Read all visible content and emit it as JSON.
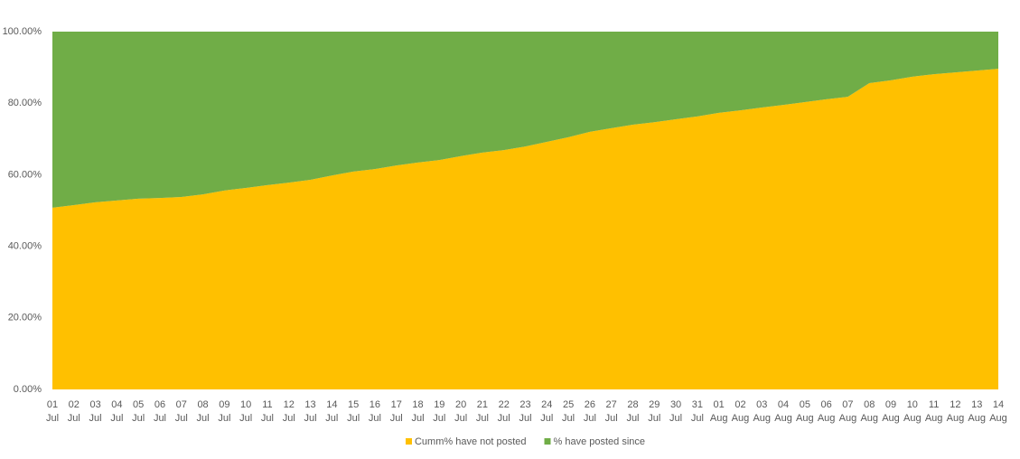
{
  "chart_data": {
    "type": "stacked_area",
    "categories": [
      "01 Jul",
      "02 Jul",
      "03 Jul",
      "04 Jul",
      "05 Jul",
      "06 Jul",
      "07 Jul",
      "08 Jul",
      "09 Jul",
      "10 Jul",
      "11 Jul",
      "12 Jul",
      "13 Jul",
      "14 Jul",
      "15 Jul",
      "16 Jul",
      "17 Jul",
      "18 Jul",
      "19 Jul",
      "20 Jul",
      "21 Jul",
      "22 Jul",
      "23 Jul",
      "24 Jul",
      "25 Jul",
      "26 Jul",
      "27 Jul",
      "28 Jul",
      "29 Jul",
      "30 Jul",
      "31 Jul",
      "01 Aug",
      "02 Aug",
      "03 Aug",
      "04 Aug",
      "05 Aug",
      "06 Aug",
      "07 Aug",
      "08 Aug",
      "09 Aug",
      "10 Aug",
      "11 Aug",
      "12 Aug",
      "13 Aug",
      "14 Aug"
    ],
    "series": [
      {
        "name": "Cumm% have not posted",
        "color": "#ffc000",
        "values": [
          50.8,
          51.5,
          52.3,
          52.8,
          53.3,
          53.5,
          53.8,
          54.5,
          55.6,
          56.3,
          57.1,
          57.8,
          58.6,
          59.8,
          60.9,
          61.6,
          62.6,
          63.4,
          64.1,
          65.2,
          66.2,
          66.9,
          67.9,
          69.2,
          70.5,
          72.0,
          73.0,
          74.0,
          74.7,
          75.5,
          76.3,
          77.3,
          78.0,
          78.8,
          79.5,
          80.3,
          81.1,
          81.8,
          85.6,
          86.4,
          87.4,
          88.1,
          88.6,
          89.1,
          89.6
        ]
      },
      {
        "name": "% have posted since",
        "color": "#70ad47",
        "values": [
          49.2,
          48.5,
          47.7,
          47.2,
          46.7,
          46.5,
          46.2,
          45.5,
          44.4,
          43.7,
          42.9,
          42.2,
          41.4,
          40.2,
          39.1,
          38.4,
          37.4,
          36.6,
          35.9,
          34.8,
          33.8,
          33.1,
          32.1,
          30.8,
          29.5,
          28.0,
          27.0,
          26.0,
          25.3,
          24.5,
          23.7,
          22.7,
          22.0,
          21.2,
          20.5,
          19.7,
          18.9,
          18.2,
          14.4,
          13.6,
          12.6,
          11.9,
          11.4,
          10.9,
          10.4
        ]
      }
    ],
    "ylim": [
      0,
      100
    ],
    "yticks": [
      {
        "value": 0,
        "label": "0.00%"
      },
      {
        "value": 20,
        "label": "20.00%"
      },
      {
        "value": 40,
        "label": "40.00%"
      },
      {
        "value": 60,
        "label": "60.00%"
      },
      {
        "value": 80,
        "label": "80.00%"
      },
      {
        "value": 100,
        "label": "100.00%"
      }
    ],
    "legend": "bottom"
  }
}
